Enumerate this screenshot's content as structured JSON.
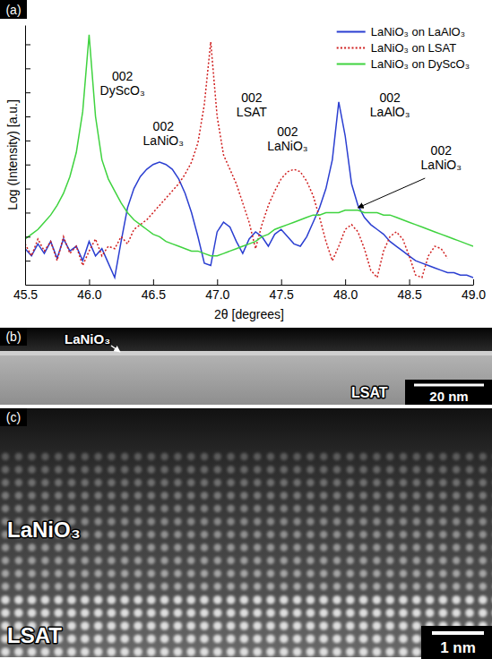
{
  "chart_data": {
    "type": "line",
    "panel_label": "(a)",
    "x_label": "2θ [degrees]",
    "y_label": "Log (Intensity) [a.u.]",
    "xlim": [
      45.5,
      49.0
    ],
    "xticks": [
      45.5,
      {
        "value": 46.0,
        "label": "46.0"
      },
      46.5,
      {
        "value": 47.0,
        "label": "47.0"
      },
      47.5,
      {
        "value": 48.0,
        "label": "48.0"
      },
      48.5,
      {
        "value": 49.0,
        "label": "49.0"
      }
    ],
    "ylim": [
      0,
      10.8
    ],
    "yticks": [
      1,
      2,
      3,
      4,
      5,
      6,
      7,
      8,
      9,
      10
    ],
    "tick_labels": "x",
    "legend": "upper right",
    "series": [
      {
        "name": "LaNiO₃ on LaAlO₃",
        "color": "#2b3fd1",
        "line_style": "solid",
        "x": [
          45.5,
          45.55,
          45.6,
          45.65,
          45.7,
          45.75,
          45.8,
          45.85,
          45.9,
          45.95,
          46.0,
          46.05,
          46.1,
          46.15,
          46.2,
          46.25,
          46.3,
          46.35,
          46.4,
          46.45,
          46.5,
          46.55,
          46.6,
          46.65,
          46.7,
          46.75,
          46.8,
          46.85,
          46.9,
          46.95,
          47.0,
          47.05,
          47.1,
          47.15,
          47.2,
          47.25,
          47.3,
          47.35,
          47.4,
          47.45,
          47.5,
          47.55,
          47.6,
          47.65,
          47.7,
          47.75,
          47.8,
          47.85,
          47.9,
          47.95,
          48.0,
          48.05,
          48.1,
          48.15,
          48.2,
          48.25,
          48.3,
          48.35,
          48.4,
          48.45,
          48.5,
          48.55,
          48.6,
          48.65,
          48.7,
          48.75,
          48.8,
          48.85,
          48.9,
          48.95,
          49.0
        ],
        "values": [
          1.5,
          1.2,
          1.7,
          1.3,
          1.8,
          1.1,
          1.9,
          1.4,
          1.6,
          1.0,
          1.8,
          1.2,
          1.5,
          0.9,
          0.3,
          1.8,
          3.2,
          4.0,
          4.5,
          4.8,
          5.0,
          5.1,
          5.0,
          4.8,
          4.4,
          3.8,
          3.0,
          2.0,
          0.9,
          0.8,
          2.2,
          2.6,
          2.4,
          1.8,
          1.3,
          1.9,
          2.2,
          2.0,
          1.6,
          2.1,
          2.3,
          2.0,
          1.7,
          1.6,
          2.0,
          2.6,
          3.2,
          4.0,
          5.2,
          7.6,
          6.2,
          4.2,
          3.3,
          2.8,
          2.5,
          2.3,
          2.1,
          1.8,
          1.6,
          1.4,
          1.2,
          1.0,
          0.9,
          0.8,
          0.7,
          0.6,
          0.5,
          0.5,
          0.4,
          0.4,
          0.3
        ]
      },
      {
        "name": "LaNiO₃ on LSAT",
        "color": "#d01f1f",
        "line_style": "dotted",
        "x": [
          45.5,
          45.55,
          45.6,
          45.65,
          45.7,
          45.75,
          45.8,
          45.85,
          45.9,
          45.95,
          46.0,
          46.05,
          46.1,
          46.15,
          46.2,
          46.25,
          46.3,
          46.35,
          46.4,
          46.45,
          46.5,
          46.55,
          46.6,
          46.65,
          46.7,
          46.75,
          46.8,
          46.85,
          46.9,
          46.95,
          47.0,
          47.05,
          47.1,
          47.15,
          47.2,
          47.25,
          47.3,
          47.35,
          47.4,
          47.45,
          47.5,
          47.55,
          47.6,
          47.65,
          47.7,
          47.75,
          47.8,
          47.85,
          47.9,
          47.95,
          48.0,
          48.05,
          48.1,
          48.15,
          48.2,
          48.25,
          48.3,
          48.35,
          48.4,
          48.45,
          48.5,
          48.55,
          48.6,
          48.65,
          48.7,
          48.75,
          48.8
        ],
        "values": [
          1.7,
          1.2,
          1.9,
          1.4,
          1.8,
          1.0,
          2.0,
          1.3,
          1.6,
          0.8,
          1.4,
          1.9,
          1.2,
          1.6,
          1.5,
          2.0,
          1.7,
          2.3,
          2.5,
          2.7,
          3.0,
          3.3,
          3.6,
          3.9,
          4.2,
          4.6,
          5.1,
          5.9,
          7.5,
          10.1,
          7.0,
          5.4,
          4.8,
          4.2,
          3.4,
          2.6,
          1.5,
          2.5,
          3.3,
          3.9,
          4.4,
          4.7,
          4.8,
          4.7,
          4.3,
          3.7,
          2.8,
          1.8,
          1.0,
          1.6,
          2.3,
          2.5,
          2.2,
          1.5,
          0.6,
          0.3,
          1.4,
          2.0,
          2.2,
          1.9,
          1.2,
          0.4,
          0.3,
          1.2,
          1.6,
          1.5,
          1.1
        ]
      },
      {
        "name": "LaNiO₃ on DyScO₃",
        "color": "#3fd33f",
        "line_style": "solid",
        "x": [
          45.5,
          45.55,
          45.6,
          45.65,
          45.7,
          45.75,
          45.8,
          45.85,
          45.9,
          45.95,
          46.0,
          46.05,
          46.1,
          46.15,
          46.2,
          46.25,
          46.3,
          46.35,
          46.4,
          46.45,
          46.5,
          46.55,
          46.6,
          46.65,
          46.7,
          46.75,
          46.8,
          46.85,
          46.9,
          46.95,
          47.0,
          47.05,
          47.1,
          47.15,
          47.2,
          47.25,
          47.3,
          47.35,
          47.4,
          47.45,
          47.5,
          47.55,
          47.6,
          47.65,
          47.7,
          47.75,
          47.8,
          47.85,
          47.9,
          47.95,
          48.0,
          48.05,
          48.1,
          48.15,
          48.2,
          48.25,
          48.3,
          48.35,
          48.4,
          48.45,
          48.5,
          48.55,
          48.6,
          48.65,
          48.7,
          48.75,
          48.8,
          48.85,
          48.9,
          48.95,
          49.0
        ],
        "values": [
          1.9,
          2.1,
          2.3,
          2.6,
          2.9,
          3.3,
          3.8,
          4.5,
          5.5,
          7.2,
          10.4,
          7.0,
          5.2,
          4.4,
          3.9,
          3.4,
          3.0,
          2.7,
          2.5,
          2.3,
          2.1,
          2.0,
          1.8,
          1.7,
          1.6,
          1.5,
          1.4,
          1.4,
          1.3,
          1.2,
          1.2,
          1.3,
          1.4,
          1.5,
          1.6,
          1.7,
          1.8,
          2.0,
          2.1,
          2.3,
          2.4,
          2.5,
          2.6,
          2.7,
          2.8,
          2.9,
          2.9,
          3.0,
          3.0,
          3.0,
          3.1,
          3.1,
          3.1,
          3.0,
          3.0,
          3.0,
          2.9,
          2.9,
          2.8,
          2.7,
          2.6,
          2.5,
          2.4,
          2.3,
          2.2,
          2.1,
          2.0,
          1.9,
          1.8,
          1.7,
          1.6
        ]
      }
    ],
    "annotations": [
      {
        "lines": [
          "002",
          "DyScO₃"
        ],
        "x": 46.26,
        "y": 8.5
      },
      {
        "lines": [
          "002",
          "LaNiO₃"
        ],
        "x": 46.58,
        "y": 6.4
      },
      {
        "lines": [
          "002",
          "LSAT"
        ],
        "x": 47.27,
        "y": 7.6
      },
      {
        "lines": [
          "002",
          "LaNiO₃"
        ],
        "x": 47.55,
        "y": 6.2
      },
      {
        "lines": [
          "002",
          "LaAlO₃"
        ],
        "x": 48.35,
        "y": 7.6
      },
      {
        "lines": [
          "002",
          "LaNiO₃"
        ],
        "x": 48.75,
        "y": 5.4,
        "arrow_to": [
          48.1,
          3.2
        ]
      }
    ]
  },
  "panel_b": {
    "label": "(b)",
    "film": "LaNiO₃",
    "substrate": "LSAT",
    "scale_bar": "20 nm"
  },
  "panel_c": {
    "label": "(c)",
    "film": "LaNiO₃",
    "substrate": "LSAT",
    "scale_bar": "1 nm"
  }
}
